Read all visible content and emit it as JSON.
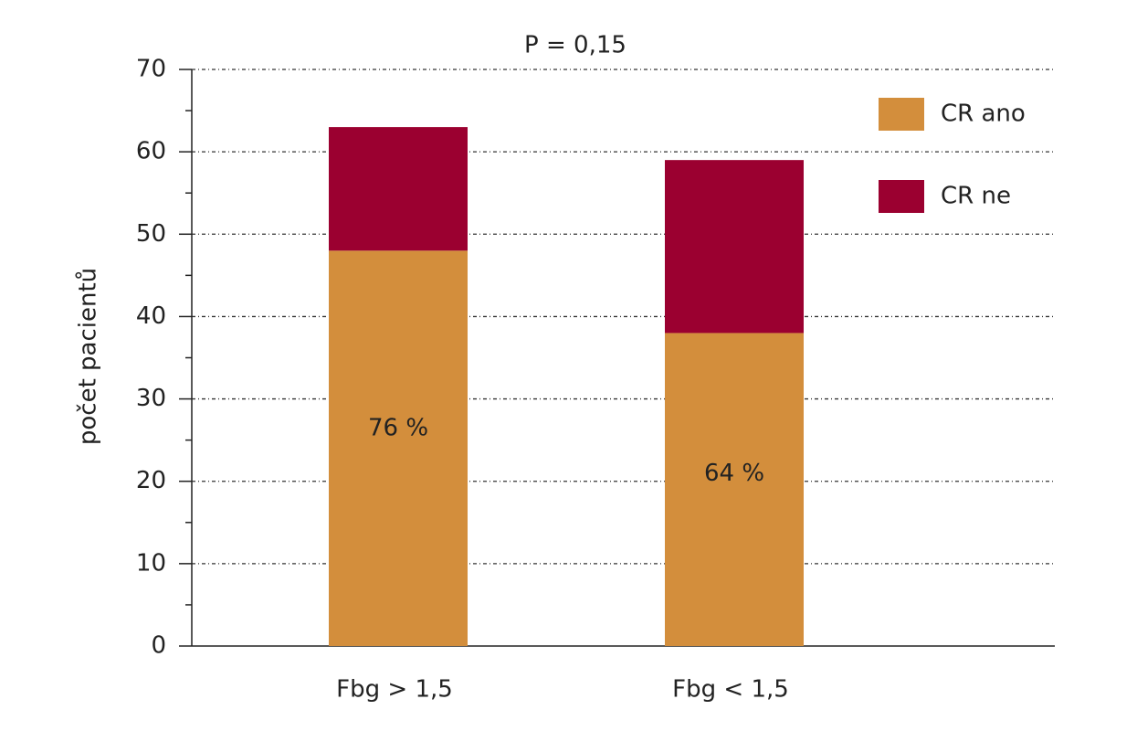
{
  "chart_data": {
    "type": "stacked-bar",
    "title": "P = 0,15",
    "y_label": "počet pacientů",
    "categories": [
      "Fbg > 1,5",
      "Fbg < 1,5"
    ],
    "series": [
      {
        "name": "CR ano",
        "color": "#d38e3c",
        "values": [
          48,
          38
        ]
      },
      {
        "name": "CR ne",
        "color": "#9b0030",
        "values": [
          15,
          21
        ]
      }
    ],
    "annotations": [
      "76 %",
      "64 %"
    ],
    "ylim": [
      0,
      70
    ],
    "yticks": [
      0,
      10,
      20,
      30,
      40,
      50,
      60,
      70
    ],
    "yminor_ticks": [
      5,
      15,
      25,
      35,
      45,
      55,
      65
    ],
    "grid": true,
    "legend": "top-right"
  }
}
